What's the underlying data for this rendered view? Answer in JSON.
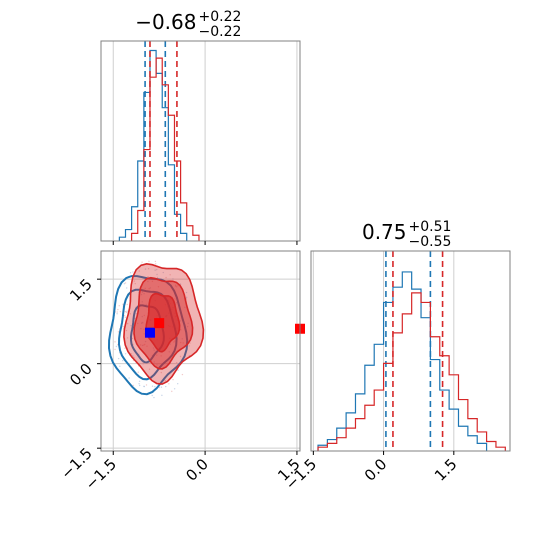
{
  "chart_data": [
    {
      "type": "histogram",
      "panel": "top-left",
      "title": {
        "median": "−0.68",
        "plus": "+0.22",
        "minus": "−0.22"
      },
      "xlim": [
        -1.7,
        1.55
      ],
      "xticks": [
        -1.5,
        0.0,
        1.5
      ],
      "grid": true,
      "series": [
        {
          "color": "#1f77b4",
          "median": -0.65,
          "quantiles": [
            -0.98,
            -0.65
          ],
          "bins": [
            {
              "x": -1.35,
              "y": 0.02
            },
            {
              "x": -1.25,
              "y": 0.06
            },
            {
              "x": -1.15,
              "y": 0.18
            },
            {
              "x": -1.05,
              "y": 0.42
            },
            {
              "x": -0.95,
              "y": 0.78
            },
            {
              "x": -0.85,
              "y": 1.0
            },
            {
              "x": -0.75,
              "y": 0.88
            },
            {
              "x": -0.65,
              "y": 0.7
            },
            {
              "x": -0.55,
              "y": 0.4
            },
            {
              "x": -0.45,
              "y": 0.14
            },
            {
              "x": -0.35,
              "y": 0.04
            }
          ]
        },
        {
          "color": "#d62728",
          "median": -0.68,
          "quantiles": [
            -0.9,
            -0.46
          ],
          "bins": [
            {
              "x": -1.15,
              "y": 0.04
            },
            {
              "x": -1.05,
              "y": 0.16
            },
            {
              "x": -0.95,
              "y": 0.48
            },
            {
              "x": -0.85,
              "y": 0.86
            },
            {
              "x": -0.75,
              "y": 0.96
            },
            {
              "x": -0.65,
              "y": 0.82
            },
            {
              "x": -0.55,
              "y": 0.66
            },
            {
              "x": -0.45,
              "y": 0.42
            },
            {
              "x": -0.35,
              "y": 0.2
            },
            {
              "x": -0.25,
              "y": 0.08
            },
            {
              "x": -0.15,
              "y": 0.03
            }
          ]
        }
      ]
    },
    {
      "type": "contour",
      "panel": "bottom-left",
      "xlim": [
        -1.7,
        1.55
      ],
      "ylim": [
        -1.55,
        2.0
      ],
      "xticks": [
        -1.5,
        0.0,
        1.5
      ],
      "yticks": [
        -1.5,
        0.0,
        1.5
      ],
      "grid": true,
      "series": [
        {
          "color": "#1f77b4",
          "filled": false,
          "center": [
            -0.95,
            0.55
          ],
          "markers": [
            [
              -0.9,
              0.55
            ]
          ]
        },
        {
          "color": "#d62728",
          "filled": true,
          "center": [
            -0.7,
            0.75
          ],
          "markers": [
            [
              -0.75,
              0.72
            ],
            [
              1.55,
              0.62
            ]
          ]
        }
      ]
    },
    {
      "type": "histogram",
      "panel": "bottom-right",
      "title": {
        "median": "0.75",
        "plus": "+0.51",
        "minus": "−0.55"
      },
      "xlim": [
        -1.55,
        2.7
      ],
      "xticks": [
        -1.5,
        0.0,
        1.5
      ],
      "grid": true,
      "series": [
        {
          "color": "#1f77b4",
          "median": 0.45,
          "quantiles": [
            0.05,
            1.0
          ],
          "bins": [
            {
              "x": -1.3,
              "y": 0.03
            },
            {
              "x": -1.1,
              "y": 0.06
            },
            {
              "x": -0.9,
              "y": 0.12
            },
            {
              "x": -0.7,
              "y": 0.2
            },
            {
              "x": -0.5,
              "y": 0.3
            },
            {
              "x": -0.3,
              "y": 0.45
            },
            {
              "x": -0.1,
              "y": 0.56
            },
            {
              "x": 0.1,
              "y": 0.78
            },
            {
              "x": 0.3,
              "y": 0.86
            },
            {
              "x": 0.5,
              "y": 0.94
            },
            {
              "x": 0.7,
              "y": 0.85
            },
            {
              "x": 0.9,
              "y": 0.7
            },
            {
              "x": 1.1,
              "y": 0.48
            },
            {
              "x": 1.3,
              "y": 0.32
            },
            {
              "x": 1.5,
              "y": 0.22
            },
            {
              "x": 1.7,
              "y": 0.13
            },
            {
              "x": 1.9,
              "y": 0.08
            },
            {
              "x": 2.1,
              "y": 0.04
            }
          ]
        },
        {
          "color": "#d62728",
          "median": 0.75,
          "quantiles": [
            0.2,
            1.26
          ],
          "bins": [
            {
              "x": -1.3,
              "y": 0.02
            },
            {
              "x": -1.1,
              "y": 0.04
            },
            {
              "x": -0.9,
              "y": 0.07
            },
            {
              "x": -0.7,
              "y": 0.12
            },
            {
              "x": -0.5,
              "y": 0.17
            },
            {
              "x": -0.3,
              "y": 0.24
            },
            {
              "x": -0.1,
              "y": 0.32
            },
            {
              "x": 0.1,
              "y": 0.46
            },
            {
              "x": 0.3,
              "y": 0.62
            },
            {
              "x": 0.5,
              "y": 0.72
            },
            {
              "x": 0.7,
              "y": 0.83
            },
            {
              "x": 0.9,
              "y": 0.78
            },
            {
              "x": 1.1,
              "y": 0.6
            },
            {
              "x": 1.3,
              "y": 0.5
            },
            {
              "x": 1.5,
              "y": 0.4
            },
            {
              "x": 1.7,
              "y": 0.27
            },
            {
              "x": 1.9,
              "y": 0.17
            },
            {
              "x": 2.1,
              "y": 0.1
            },
            {
              "x": 2.3,
              "y": 0.05
            },
            {
              "x": 2.5,
              "y": 0.02
            }
          ]
        }
      ]
    }
  ]
}
